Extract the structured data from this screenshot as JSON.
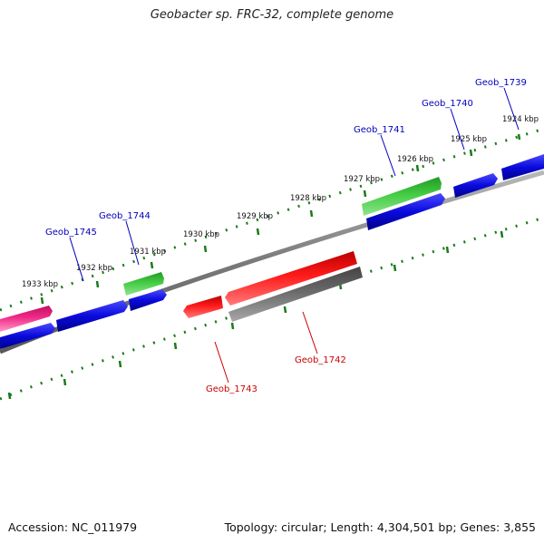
{
  "title": "Geobacter sp. FRC-32, complete genome",
  "footer": {
    "accession_label": "Accession:",
    "accession": "NC_011979",
    "topology_label": "Topology:",
    "topology": "circular",
    "length_label": "Length:",
    "length": "4,304,501 bp",
    "genes_label": "Genes:",
    "genes": "3,855"
  },
  "colors": {
    "backbone": "#8a8a8a",
    "ticks": "#1a7a1a",
    "tick_label": "#111111",
    "forward_label": "#0000bb",
    "reverse_label": "#cc0000",
    "blue": "#0a0adc",
    "green": "#33bb33",
    "red": "#ee1111",
    "gray": "#666666",
    "pink": "#e0207a"
  },
  "ruler_labels": [
    "1924 kbp",
    "1925 kbp",
    "1926 kbp",
    "1927 kbp",
    "1928 kbp",
    "1929 kbp",
    "1930 kbp",
    "1931 kbp",
    "1932 kbp",
    "1933 kbp"
  ],
  "gene_labels": [
    {
      "name": "Geob_1739",
      "strand": "forward"
    },
    {
      "name": "Geob_1740",
      "strand": "forward"
    },
    {
      "name": "Geob_1741",
      "strand": "forward"
    },
    {
      "name": "Geob_1744",
      "strand": "forward"
    },
    {
      "name": "Geob_1745",
      "strand": "forward"
    },
    {
      "name": "Geob_1742",
      "strand": "reverse"
    },
    {
      "name": "Geob_1743",
      "strand": "reverse"
    }
  ]
}
